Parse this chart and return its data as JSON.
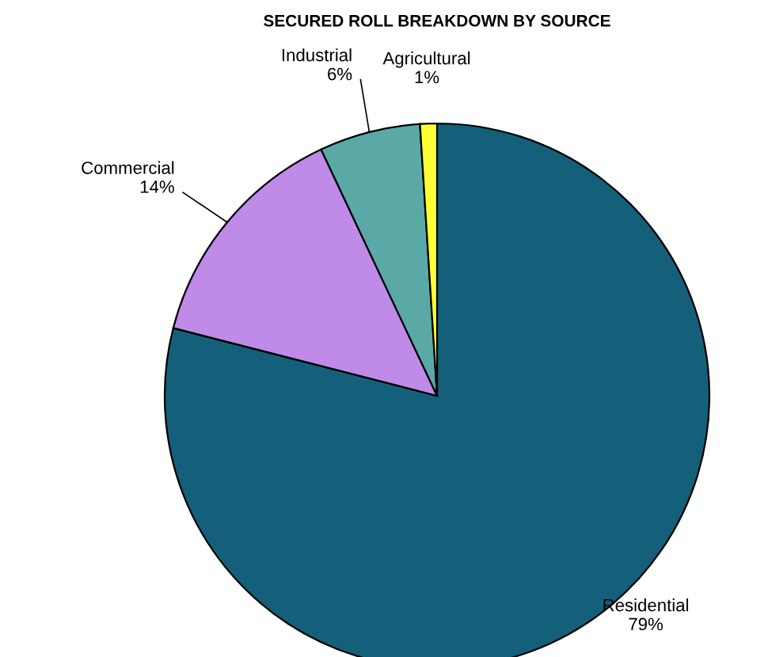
{
  "chart_data": {
    "type": "pie",
    "title": "SECURED ROLL BREAKDOWN BY SOURCE",
    "categories": [
      "Residential",
      "Commercial",
      "Industrial",
      "Agricultural"
    ],
    "values": [
      79,
      14,
      6,
      1
    ],
    "colors": [
      "#14607a",
      "#c08ae8",
      "#5aa9a6",
      "#ffff33"
    ],
    "value_labels": [
      "79%",
      "14%",
      "6%",
      "1%"
    ]
  }
}
